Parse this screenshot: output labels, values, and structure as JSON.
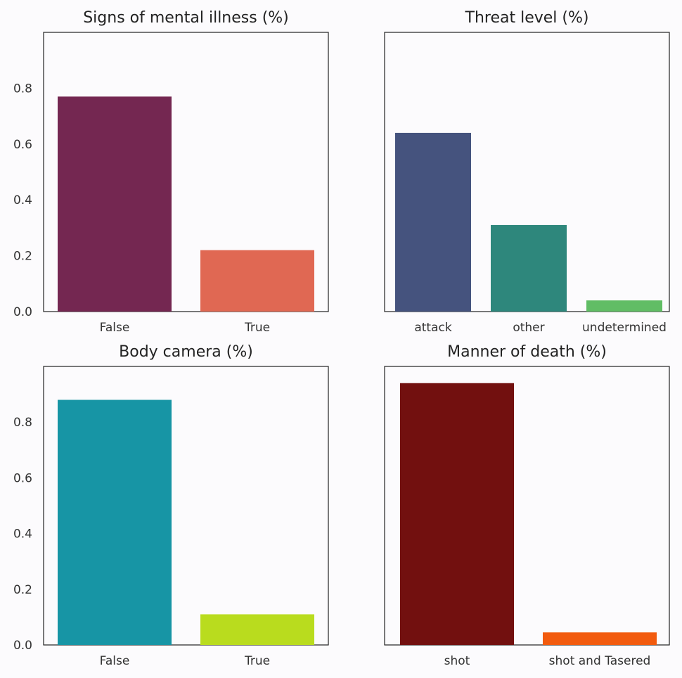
{
  "chart_data": [
    {
      "type": "bar",
      "title": "Signs of mental illness (%)",
      "categories": [
        "False",
        "True"
      ],
      "values": [
        0.77,
        0.22
      ],
      "colors": [
        "#742751",
        "#e06853"
      ],
      "ylim": [
        0,
        1.0
      ],
      "yticks": [
        "0.0",
        "0.2",
        "0.4",
        "0.6",
        "0.8"
      ],
      "xlabel": "",
      "ylabel": ""
    },
    {
      "type": "bar",
      "title": "Threat level (%)",
      "categories": [
        "attack",
        "other",
        "undetermined"
      ],
      "values": [
        0.64,
        0.31,
        0.04
      ],
      "colors": [
        "#45537e",
        "#2e877c",
        "#61bd65"
      ],
      "ylim": [
        0,
        1.0
      ],
      "yticks": [],
      "xlabel": "",
      "ylabel": ""
    },
    {
      "type": "bar",
      "title": "Body camera (%)",
      "categories": [
        "False",
        "True"
      ],
      "values": [
        0.88,
        0.11
      ],
      "colors": [
        "#1795a5",
        "#b9dc1e"
      ],
      "ylim": [
        0,
        1.0
      ],
      "yticks": [
        "0.0",
        "0.2",
        "0.4",
        "0.6",
        "0.8"
      ],
      "xlabel": "",
      "ylabel": ""
    },
    {
      "type": "bar",
      "title": "Manner of death (%)",
      "categories": [
        "shot",
        "shot and Tasered"
      ],
      "values": [
        0.94,
        0.045
      ],
      "colors": [
        "#72100f",
        "#f25b0e"
      ],
      "ylim": [
        0,
        1.0
      ],
      "yticks": [],
      "xlabel": "",
      "ylabel": ""
    }
  ]
}
